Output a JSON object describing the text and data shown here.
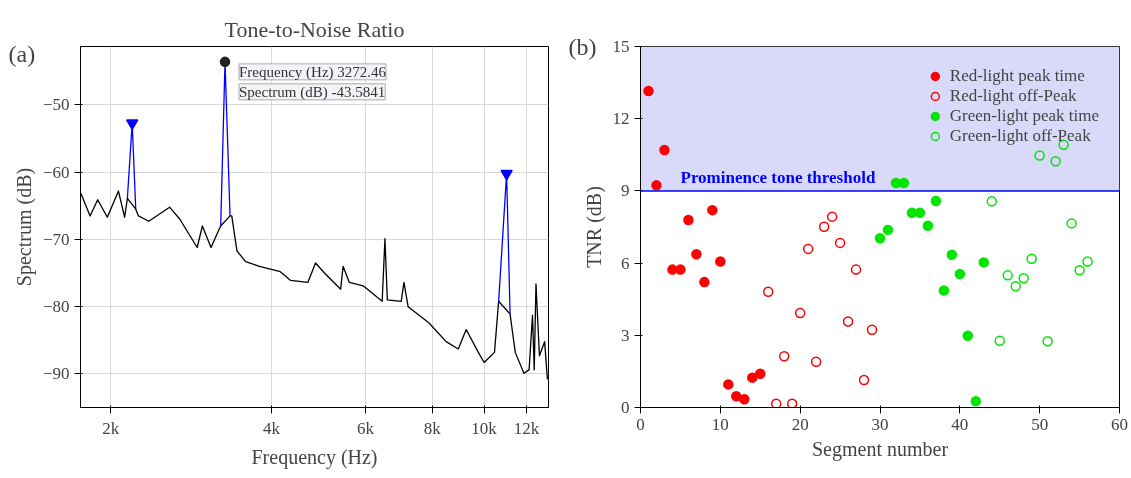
{
  "chart_data": [
    {
      "type": "line",
      "title": "Tone-to-Noise Ratio",
      "xlabel": "Frequency (Hz)",
      "ylabel": "Spectrum (dB)",
      "log": "x",
      "grid": true,
      "line_style": "solid",
      "xlim": [
        1755,
        13200
      ],
      "ylim": [
        -95,
        -41.3
      ],
      "xticks": [
        {
          "value": 2000,
          "label": "2k"
        },
        {
          "value": 4000,
          "label": "4k"
        },
        {
          "value": 6000,
          "label": "6k"
        },
        {
          "value": 8000,
          "label": "8k"
        },
        {
          "value": 10000,
          "label": "10k"
        },
        {
          "value": 12000,
          "label": "12k"
        }
      ],
      "yticks": [
        -90,
        -80,
        -70,
        -60,
        -50
      ],
      "annotations": [
        "(a)",
        {
          "text": "Frequency (Hz) 3272.46",
          "x": 3272.46,
          "y": -43.5841
        },
        {
          "text": "Spectrum (dB) -43.5841",
          "x": 3272.46,
          "y": -43.5841
        }
      ],
      "series": [
        {
          "type": "line",
          "color": "#000000",
          "x": [
            1757,
            1829,
            1890,
            1970,
            2067,
            2123,
            2148,
            2227,
            2253,
            2356,
            2577,
            2694,
            2902,
            2968,
            3081,
            3198,
            3212,
            3344,
            3369,
            3445,
            3576,
            3796,
            4153,
            4342,
            4677,
            4834,
            5040,
            5387,
            5445,
            5593,
            5937,
            6444,
            6521,
            6589,
            6995,
            7079,
            7206,
            7879,
            8490,
            8945,
            9257,
            9708,
            10001,
            10458,
            10647,
            11185,
            11438,
            11871,
            12140,
            12320,
            12414,
            12506,
            12695,
            12982,
            13138
          ],
          "values": [
            -63.1,
            -66.5,
            -64.1,
            -66.7,
            -62.8,
            -66.7,
            -63.9,
            -65.5,
            -66.5,
            -67.3,
            -65.2,
            -67.0,
            -71.2,
            -68.0,
            -71.2,
            -68.3,
            -68.0,
            -66.5,
            -66.5,
            -71.7,
            -73.3,
            -74.0,
            -74.8,
            -76.1,
            -76.4,
            -73.5,
            -75.1,
            -77.4,
            -74.0,
            -76.4,
            -76.9,
            -79.2,
            -69.9,
            -79.0,
            -79.2,
            -76.4,
            -80.0,
            -82.4,
            -85.2,
            -86.3,
            -83.4,
            -86.5,
            -88.3,
            -86.8,
            -79.2,
            -81.1,
            -86.8,
            -89.9,
            -89.4,
            -81.3,
            -89.4,
            -76.6,
            -87.3,
            -85.2,
            -90.8
          ]
        },
        {
          "type": "line",
          "color": "#0000ff",
          "x": [
            2148,
            2193,
            2227
          ],
          "values": [
            -63.9,
            -52.7,
            -65.5
          ]
        },
        {
          "type": "line",
          "color": "#0000ff",
          "x": [
            3212,
            3272.46,
            3344
          ],
          "values": [
            -68.0,
            -43.5841,
            -66.5
          ]
        },
        {
          "type": "line",
          "color": "#0000ff",
          "x": [
            10647,
            11019,
            11185
          ],
          "values": [
            -79.2,
            -60.2,
            -81.1
          ]
        },
        {
          "type": "scatter",
          "marker": "triangle",
          "color": "#0000ff",
          "x": [
            2193,
            11019
          ],
          "values": [
            -52.7,
            -60.2
          ]
        },
        {
          "type": "scatter",
          "marker": "circle",
          "color": "#222222",
          "x": [
            3272.46
          ],
          "values": [
            -43.5841
          ]
        }
      ]
    },
    {
      "type": "scatter",
      "xlabel": "Segment number",
      "ylabel": "TNR (dB)",
      "grid": false,
      "marker": "circle",
      "legend": "top right",
      "xlim": [
        0,
        60
      ],
      "ylim": [
        0,
        15
      ],
      "xticks": [
        0,
        10,
        20,
        30,
        40,
        50,
        60
      ],
      "yticks": [
        0,
        3,
        6,
        9,
        12,
        15
      ],
      "annotations": [
        "(b)"
      ],
      "bands": [
        {
          "axis": "y",
          "from": 9,
          "to": 15,
          "color": "#d9d9fa"
        }
      ],
      "ref_lines": [
        {
          "axis": "y",
          "value": 9,
          "label": "Prominence tone threshold",
          "color": "#0000ff"
        }
      ],
      "series": [
        {
          "name": "Red-light peak time",
          "color": "#ff0000",
          "x": [
            1,
            2,
            3,
            4,
            5,
            6,
            7,
            8,
            9,
            10,
            11,
            12,
            13,
            14,
            15
          ],
          "values": [
            13.15,
            9.23,
            10.7,
            5.73,
            5.73,
            7.79,
            6.37,
            5.21,
            8.2,
            6.07,
            0.96,
            0.47,
            0.34,
            1.24,
            1.4
          ]
        },
        {
          "name": "Red-light off-Peak",
          "color": "#ff0000",
          "marker": "circle_open",
          "x": [
            16,
            17,
            18,
            19,
            20,
            21,
            22,
            23,
            24,
            25,
            26,
            27,
            28,
            29
          ],
          "values": [
            4.81,
            0.16,
            2.13,
            0.16,
            3.93,
            6.59,
            1.9,
            7.51,
            7.93,
            6.84,
            3.57,
            5.73,
            1.14,
            3.23
          ]
        },
        {
          "name": "Green-light peak time",
          "color": "#00e600",
          "x": [
            30,
            31,
            32,
            33,
            34,
            35,
            36,
            37,
            38,
            39,
            40,
            41,
            42,
            43
          ],
          "values": [
            7.03,
            7.38,
            9.33,
            9.33,
            8.09,
            8.09,
            7.55,
            8.58,
            4.86,
            6.35,
            5.55,
            2.98,
            0.26,
            6.03
          ]
        },
        {
          "name": "Green-light off-Peak",
          "color": "#00e600",
          "marker": "circle_open",
          "x": [
            44,
            45,
            46,
            47,
            48,
            49,
            50,
            51,
            52,
            53,
            54,
            55,
            56
          ],
          "values": [
            8.57,
            2.77,
            5.49,
            5.04,
            5.37,
            6.18,
            10.47,
            2.75,
            10.23,
            10.92,
            7.65,
            5.7,
            6.07
          ]
        }
      ]
    }
  ]
}
